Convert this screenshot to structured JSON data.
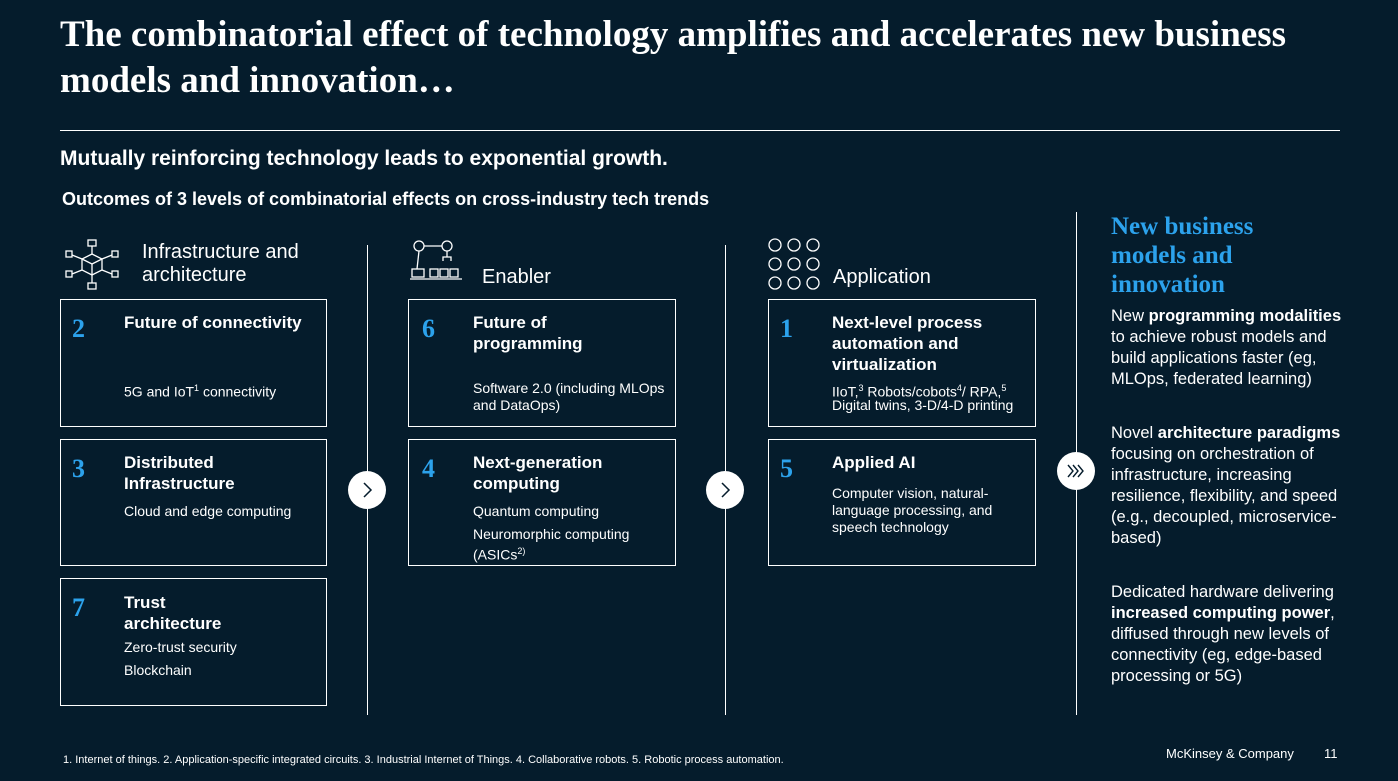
{
  "title": "The combinatorial effect of technology amplifies and accelerates new business models and innovation…",
  "subtitle": "Mutually reinforcing technology leads to exponential growth.",
  "sub_subtitle": "Outcomes of 3 levels of combinatorial effects on cross-industry tech trends",
  "columns": [
    {
      "heading": "Infrastructure and architecture",
      "cards": [
        {
          "num": "2",
          "title": "Future of connectivity",
          "lines": [
            "5G and IoT",
            "1",
            " connectivity"
          ]
        },
        {
          "num": "3",
          "title": "Distributed Infrastructure",
          "lines": [
            "Cloud and edge computing"
          ]
        },
        {
          "num": "7",
          "title": "Trust architecture",
          "lines": [
            "Zero-trust security",
            "Blockchain"
          ]
        }
      ]
    },
    {
      "heading": "Enabler",
      "cards": [
        {
          "num": "6",
          "title": "Future of programming",
          "lines": [
            "Software 2.0 (including MLOps",
            "and DataOps)"
          ]
        },
        {
          "num": "4",
          "title": "Next-generation computing",
          "lines": [
            "Quantum computing",
            "Neuromorphic computing",
            "(ASICs",
            "2)",
            ")"
          ]
        }
      ]
    },
    {
      "heading": "Application",
      "cards": [
        {
          "num": "1",
          "title": "Next-level process automation and virtualization",
          "lines": [
            "IIoT,",
            "3",
            " Robots/cobots",
            "4",
            "/ RPA,",
            "5",
            "Digital twins, 3-D/4-D printing"
          ]
        },
        {
          "num": "5",
          "title": "Applied AI",
          "lines": [
            "Computer vision, natural-",
            "language processing, and",
            "speech technology"
          ]
        }
      ]
    }
  ],
  "new_business": {
    "title": "New business models and innovation",
    "p1": {
      "a": "New ",
      "b": "programming modalities",
      "c": " to achieve robust models and build applications faster (eg, MLOps, federated learning)"
    },
    "p2": {
      "a": "Novel ",
      "b": "architecture paradigms",
      "c": " focusing on orchestration of infrastructure, increasing resilience, flexibility, and speed (e.g., decoupled, microservice-based)"
    },
    "p3": {
      "a": "Dedicated hardware delivering ",
      "b": "increased computing power",
      "c": ", diffused through new levels of connectivity (eg, edge-based processing or 5G)"
    }
  },
  "footnote": "1. Internet of things. 2. Application-specific integrated circuits. 3. Industrial Internet of Things. 4. Collaborative robots. 5. Robotic process automation.",
  "brand": "McKinsey & Company",
  "page_number": "11",
  "colors": {
    "background": "#051c2c",
    "accent": "#2ca2ec",
    "text": "#ffffff"
  },
  "icons": [
    "network-cube-icon",
    "robot-arm-icon",
    "dots-grid-icon",
    "chevron-right-icon",
    "triple-chevron-icon"
  ]
}
